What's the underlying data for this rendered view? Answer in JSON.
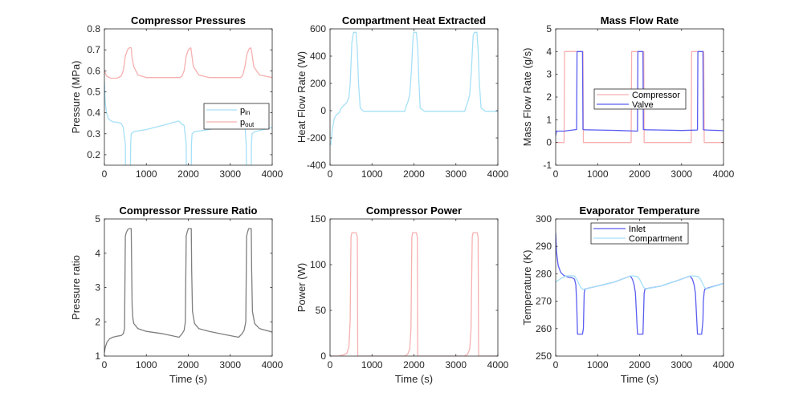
{
  "figure": {
    "background": "#ffffff"
  },
  "chart_data": [
    {
      "id": "p1",
      "type": "line",
      "title": "Compressor Pressures",
      "xlabel": "",
      "ylabel": "Pressure (MPa)",
      "xlim": [
        0,
        4000
      ],
      "ylim": [
        0.15,
        0.8
      ],
      "xticks": [
        0,
        1000,
        2000,
        3000,
        4000
      ],
      "yticks": [
        0.2,
        0.3,
        0.4,
        0.5,
        0.6,
        0.7,
        0.8
      ],
      "ytick_labels": [
        "0.2",
        "0.3",
        "0.4",
        "0.5",
        "0.6",
        "0.7",
        "0.8"
      ],
      "legend": {
        "placement": "center-right",
        "entries": [
          {
            "name": "p",
            "sub": "in"
          },
          {
            "name": "p",
            "sub": "out"
          }
        ]
      },
      "series": [
        {
          "name": "p_in",
          "color": "#a6e0f7",
          "x": [
            0,
            20,
            50,
            100,
            200,
            300,
            400,
            450,
            500,
            505,
            620,
            625,
            640,
            700,
            1000,
            1400,
            1750,
            1780,
            1850,
            1900,
            1950,
            1955,
            2070,
            2075,
            2090,
            2150,
            2500,
            2900,
            3200,
            3220,
            3300,
            3350,
            3380,
            3385,
            3500,
            3505,
            3520,
            3580,
            4000
          ],
          "y": [
            0.55,
            0.45,
            0.4,
            0.37,
            0.357,
            0.355,
            0.35,
            0.33,
            0.25,
            0.1,
            0.1,
            0.25,
            0.3,
            0.31,
            0.32,
            0.34,
            0.36,
            0.36,
            0.345,
            0.34,
            0.25,
            0.1,
            0.1,
            0.25,
            0.3,
            0.31,
            0.32,
            0.34,
            0.36,
            0.36,
            0.345,
            0.34,
            0.25,
            0.1,
            0.1,
            0.25,
            0.3,
            0.31,
            0.33
          ]
        },
        {
          "name": "p_out",
          "color": "#f7b0b0",
          "x": [
            0,
            50,
            150,
            300,
            400,
            450,
            500,
            550,
            600,
            640,
            660,
            700,
            800,
            1000,
            1500,
            1800,
            1850,
            1900,
            1950,
            2000,
            2060,
            2080,
            2120,
            2250,
            2500,
            3000,
            3250,
            3300,
            3350,
            3400,
            3450,
            3490,
            3520,
            3560,
            3700,
            4000
          ],
          "y": [
            0.6,
            0.575,
            0.565,
            0.565,
            0.575,
            0.6,
            0.67,
            0.7,
            0.71,
            0.71,
            0.66,
            0.62,
            0.58,
            0.568,
            0.568,
            0.568,
            0.575,
            0.6,
            0.67,
            0.7,
            0.71,
            0.68,
            0.62,
            0.58,
            0.568,
            0.568,
            0.568,
            0.58,
            0.62,
            0.68,
            0.705,
            0.71,
            0.68,
            0.62,
            0.58,
            0.568
          ]
        }
      ]
    },
    {
      "id": "p2",
      "type": "line",
      "title": "Compartment Heat Extracted",
      "xlabel": "",
      "ylabel": "Heat Flow Rate (W)",
      "xlim": [
        0,
        4000
      ],
      "ylim": [
        -400,
        600
      ],
      "xticks": [
        0,
        1000,
        2000,
        3000,
        4000
      ],
      "yticks": [
        -400,
        -200,
        0,
        200,
        400,
        600
      ],
      "ytick_labels": [
        "-400",
        "-200",
        "0",
        "200",
        "400",
        "600"
      ],
      "series": [
        {
          "name": "Heat",
          "color": "#a6e0f7",
          "x": [
            0,
            20,
            50,
            100,
            150,
            200,
            230,
            250,
            300,
            400,
            450,
            480,
            520,
            560,
            620,
            650,
            680,
            720,
            800,
            1500,
            1780,
            1800,
            1850,
            1900,
            1940,
            1980,
            2000,
            2060,
            2090,
            2120,
            2150,
            2250,
            3000,
            3210,
            3230,
            3280,
            3330,
            3370,
            3410,
            3440,
            3500,
            3530,
            3560,
            3600,
            3700,
            4000
          ],
          "y": [
            -230,
            -250,
            -150,
            -60,
            -30,
            -20,
            -10,
            10,
            30,
            60,
            100,
            200,
            500,
            575,
            575,
            450,
            200,
            20,
            -5,
            -5,
            -5,
            20,
            60,
            120,
            300,
            550,
            575,
            575,
            450,
            200,
            20,
            -5,
            -5,
            -5,
            20,
            60,
            120,
            300,
            550,
            575,
            575,
            450,
            200,
            20,
            -5,
            -5
          ]
        }
      ]
    },
    {
      "id": "p3",
      "type": "line",
      "title": "Mass Flow Rate",
      "xlabel": "",
      "ylabel": "Mass Flow Rate (g/s)",
      "xlim": [
        0,
        4000
      ],
      "ylim": [
        -1,
        5
      ],
      "xticks": [
        0,
        1000,
        2000,
        3000,
        4000
      ],
      "yticks": [
        -1,
        0,
        1,
        2,
        3,
        4,
        5
      ],
      "ytick_labels": [
        "-1",
        "0",
        "1",
        "2",
        "3",
        "4",
        "5"
      ],
      "legend": {
        "placement": "center",
        "entries": [
          {
            "name": "Compressor"
          },
          {
            "name": "Valve"
          }
        ]
      },
      "series": [
        {
          "name": "Compressor",
          "color": "#f7b0b0",
          "x": [
            0,
            200,
            210,
            650,
            660,
            1800,
            1810,
            2100,
            2110,
            3230,
            3240,
            3530,
            3540,
            4000
          ],
          "y": [
            0,
            0,
            4,
            4,
            0,
            0,
            4,
            4,
            0,
            0,
            4,
            4,
            0,
            0
          ]
        },
        {
          "name": "Valve",
          "color": "#5a5ef0",
          "x": [
            0,
            20,
            200,
            400,
            500,
            510,
            640,
            650,
            700,
            1000,
            1500,
            1950,
            1960,
            2080,
            2090,
            2150,
            2500,
            3000,
            3380,
            3390,
            3510,
            3520,
            3600,
            4000
          ],
          "y": [
            0.3,
            0.5,
            0.5,
            0.55,
            0.57,
            4,
            4,
            0.57,
            0.56,
            0.55,
            0.53,
            0.5,
            4,
            4,
            0.57,
            0.56,
            0.55,
            0.53,
            0.55,
            4,
            4,
            0.56,
            0.55,
            0.52
          ]
        }
      ]
    },
    {
      "id": "p4",
      "type": "line",
      "title": "Compressor Pressure Ratio",
      "xlabel": "Time (s)",
      "ylabel": "Pressure ratio",
      "xlim": [
        0,
        4000
      ],
      "ylim": [
        1,
        5
      ],
      "xticks": [
        0,
        1000,
        2000,
        3000,
        4000
      ],
      "yticks": [
        1,
        2,
        3,
        4,
        5
      ],
      "ytick_labels": [
        "1",
        "2",
        "3",
        "4",
        "5"
      ],
      "series": [
        {
          "name": "Pressure ratio",
          "color": "#7f7f7f",
          "x": [
            0,
            20,
            60,
            120,
            200,
            300,
            400,
            450,
            480,
            500,
            520,
            560,
            600,
            640,
            650,
            660,
            680,
            700,
            800,
            1000,
            1400,
            1780,
            1850,
            1900,
            1930,
            1950,
            1970,
            2000,
            2070,
            2080,
            2100,
            2150,
            2250,
            2500,
            2900,
            3200,
            3280,
            3330,
            3370,
            3390,
            3420,
            3440,
            3500,
            3510,
            3530,
            3580,
            3700,
            4000
          ],
          "y": [
            1.1,
            1.25,
            1.4,
            1.5,
            1.55,
            1.58,
            1.6,
            1.65,
            1.8,
            4.5,
            4.6,
            4.7,
            4.72,
            4.72,
            3.5,
            2.5,
            2.1,
            1.95,
            1.8,
            1.72,
            1.65,
            1.55,
            1.65,
            1.75,
            2.0,
            4.5,
            4.6,
            4.72,
            4.72,
            3.5,
            2.3,
            1.95,
            1.8,
            1.72,
            1.62,
            1.55,
            1.65,
            1.75,
            2.0,
            4.5,
            4.65,
            4.72,
            4.72,
            3.5,
            2.3,
            1.95,
            1.8,
            1.7
          ]
        }
      ]
    },
    {
      "id": "p5",
      "type": "line",
      "title": "Compressor Power",
      "xlabel": "Time (s)",
      "ylabel": "Power (W)",
      "xlim": [
        0,
        4000
      ],
      "ylim": [
        0,
        150
      ],
      "xticks": [
        0,
        1000,
        2000,
        3000,
        4000
      ],
      "yticks": [
        0,
        50,
        100,
        150
      ],
      "ytick_labels": [
        "0",
        "50",
        "100",
        "150"
      ],
      "series": [
        {
          "name": "Power",
          "color": "#f7b0b0",
          "x": [
            0,
            200,
            300,
            400,
            450,
            480,
            500,
            520,
            560,
            620,
            650,
            660,
            1780,
            1850,
            1900,
            1930,
            1950,
            1970,
            2000,
            2060,
            2080,
            2090,
            3200,
            3280,
            3330,
            3360,
            3390,
            3410,
            3450,
            3510,
            3530,
            3540,
            4000
          ],
          "y": [
            0,
            0,
            1,
            3,
            10,
            40,
            130,
            135,
            135,
            135,
            130,
            0,
            0,
            2,
            8,
            30,
            130,
            135,
            135,
            135,
            130,
            0,
            0,
            2,
            8,
            30,
            130,
            135,
            135,
            135,
            130,
            0,
            0
          ]
        }
      ]
    },
    {
      "id": "p6",
      "type": "line",
      "title": "Evaporator Temperature",
      "xlabel": "Time (s)",
      "ylabel": "Temperature (K)",
      "xlim": [
        0,
        4000
      ],
      "ylim": [
        250,
        300
      ],
      "xticks": [
        0,
        1000,
        2000,
        3000,
        4000
      ],
      "yticks": [
        250,
        260,
        270,
        280,
        290,
        300
      ],
      "ytick_labels": [
        "250",
        "260",
        "270",
        "280",
        "290",
        "300"
      ],
      "legend": {
        "placement": "top",
        "entries": [
          {
            "name": "Inlet"
          },
          {
            "name": "Compartment"
          }
        ]
      },
      "series": [
        {
          "name": "Inlet",
          "color": "#5a5ef0",
          "x": [
            0,
            20,
            60,
            120,
            200,
            300,
            400,
            450,
            480,
            500,
            520,
            600,
            640,
            660,
            680,
            700,
            1000,
            1400,
            1780,
            1830,
            1870,
            1900,
            1950,
            1960,
            2050,
            2080,
            2090,
            2110,
            2130,
            2500,
            2900,
            3200,
            3260,
            3300,
            3330,
            3380,
            3390,
            3480,
            3510,
            3520,
            3540,
            3560,
            4000
          ],
          "y": [
            295,
            288,
            283,
            280.5,
            279.3,
            278.8,
            278.5,
            278,
            276,
            270,
            258,
            258,
            258,
            260,
            273,
            274.5,
            275.5,
            277,
            279.2,
            278,
            276,
            273,
            258,
            258,
            258,
            258,
            263,
            273,
            274.5,
            275.5,
            277.5,
            279.2,
            278,
            276,
            273,
            258,
            258,
            258,
            263,
            270,
            273.5,
            274.5,
            276.5
          ]
        },
        {
          "name": "Compartment",
          "color": "#a6e0f7",
          "x": [
            0,
            50,
            150,
            250,
            350,
            450,
            500,
            550,
            600,
            650,
            700,
            1000,
            1400,
            1780,
            1850,
            1950,
            2000,
            2050,
            2100,
            2150,
            2500,
            2900,
            3200,
            3300,
            3400,
            3450,
            3500,
            3550,
            3600,
            4000
          ],
          "y": [
            277,
            277.5,
            278.5,
            279.2,
            279.3,
            279.2,
            278,
            276.5,
            275,
            274.3,
            274.5,
            275.5,
            277,
            279.2,
            279.2,
            279,
            278,
            276.5,
            275,
            274.5,
            275.5,
            277.5,
            279.2,
            279.2,
            279,
            278,
            276.5,
            275,
            274.5,
            276.5
          ]
        }
      ]
    }
  ]
}
